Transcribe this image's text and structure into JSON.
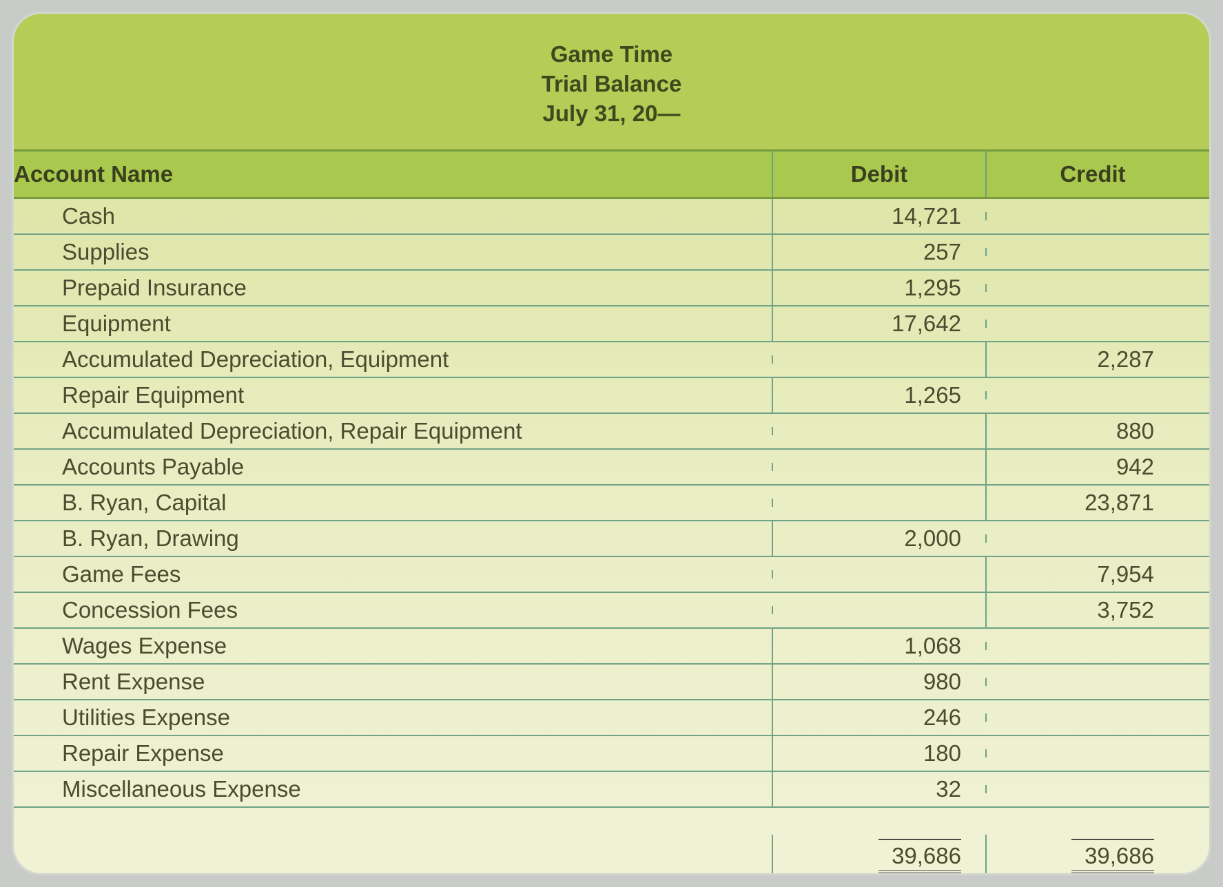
{
  "title": {
    "line1": "Game Time",
    "line2": "Trial Balance",
    "line3": "July 31, 20—"
  },
  "columns": {
    "account_name": "Account Name",
    "debit": "Debit",
    "credit": "Credit"
  },
  "rows": [
    {
      "name": "Cash",
      "debit": "14,721",
      "credit": ""
    },
    {
      "name": "Supplies",
      "debit": "257",
      "credit": ""
    },
    {
      "name": "Prepaid Insurance",
      "debit": "1,295",
      "credit": ""
    },
    {
      "name": "Equipment",
      "debit": "17,642",
      "credit": ""
    },
    {
      "name": "Accumulated Depreciation, Equipment",
      "debit": "",
      "credit": "2,287"
    },
    {
      "name": "Repair Equipment",
      "debit": "1,265",
      "credit": ""
    },
    {
      "name": "Accumulated Depreciation, Repair Equipment",
      "debit": "",
      "credit": "880"
    },
    {
      "name": "Accounts Payable",
      "debit": "",
      "credit": "942"
    },
    {
      "name": "B. Ryan, Capital",
      "debit": "",
      "credit": "23,871"
    },
    {
      "name": "B. Ryan, Drawing",
      "debit": "2,000",
      "credit": ""
    },
    {
      "name": "Game Fees",
      "debit": "",
      "credit": "7,954"
    },
    {
      "name": "Concession Fees",
      "debit": "",
      "credit": "3,752"
    },
    {
      "name": "Wages Expense",
      "debit": "1,068",
      "credit": ""
    },
    {
      "name": "Rent Expense",
      "debit": "980",
      "credit": ""
    },
    {
      "name": "Utilities Expense",
      "debit": "246",
      "credit": ""
    },
    {
      "name": "Repair Expense",
      "debit": "180",
      "credit": ""
    },
    {
      "name": "Miscellaneous Expense",
      "debit": "32",
      "credit": ""
    }
  ],
  "totals": {
    "debit": "39,686",
    "credit": "39,686"
  },
  "styling": {
    "card_gradient_top": "#d7e097",
    "card_gradient_mid": "#e8edc0",
    "card_gradient_bottom": "#f0f2d6",
    "title_bg": "#b5cc56",
    "header_bg": "#a8c94e",
    "row_border": "#6fa287",
    "header_border": "#789a3e",
    "text_color": "#494c2e",
    "title_text_color": "#40481e",
    "font_size_title": 33,
    "font_size_body": 33,
    "border_radius": 40
  }
}
